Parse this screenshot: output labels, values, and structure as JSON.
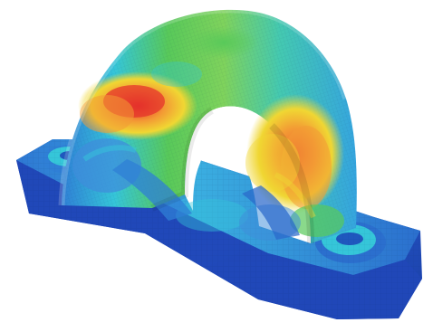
{
  "image": {
    "subject": "pillow-block-bearing-housing-stress-contour",
    "render_style": "finite-element-mesh-heatmap"
  },
  "colors": {
    "background": "#ffffff",
    "low": "#1a3ea8",
    "low_mid": "#2f7fd6",
    "mid": "#35c6d9",
    "mid_high": "#58c95a",
    "high": "#f0d733",
    "very_high": "#f39a34",
    "peak": "#e4312b"
  }
}
